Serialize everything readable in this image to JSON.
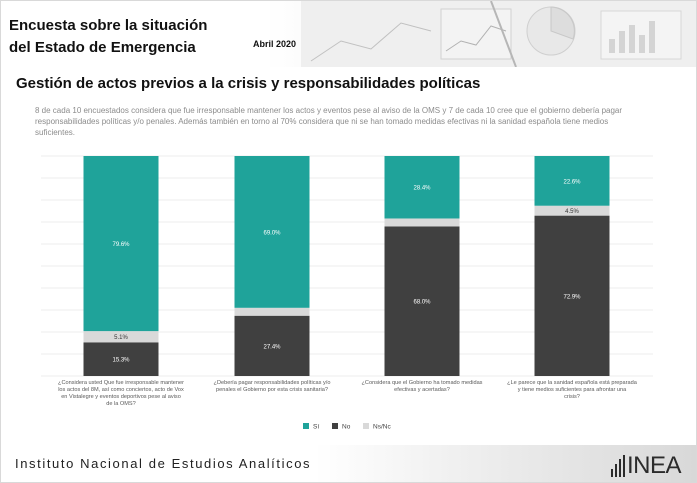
{
  "header": {
    "title_line1": "Encuesta sobre la situación",
    "title_line2": "del Estado de Emergencia",
    "date": "Abril 2020"
  },
  "slide": {
    "subtitle": "Gestión de actos previos a la crisis y responsabilidades políticas",
    "description": "8 de cada 10 encuestados considera que fue irresponsable mantener los actos y eventos pese al aviso de la OMS y 7 de cada 10 cree que el gobierno debería pagar responsabilidades políticas y/o penales. Además también en torno al 70% considera que ni se han tomado medidas efectivas ni la sanidad española tiene medios suficientes."
  },
  "footer": {
    "institute": "Instituto Nacional de Estudios Analíticos",
    "logo": "INEA"
  },
  "colors": {
    "si": "#1fa39a",
    "no": "#404040",
    "nsnc": "#d9d9d9",
    "gridline": "#ececec",
    "label_light": "#ffffff",
    "label_dark": "#333333"
  },
  "chart_data": {
    "type": "bar",
    "stacked": true,
    "percent_stacked": true,
    "categories": [
      "¿Considera usted Que fue irresponsable mantener los actos del 8M, así como conciertos, acto de Vox en Vistalegre y eventos deportivos pese al aviso de la OMS?",
      "¿Debería pagar responsabilidades políticas y/o penales el Gobierno por esta crisis sanitaria?",
      "¿Considera que el Gobierno ha tomado medidas efectivas y acertadas?",
      "¿Le parece que la sanidad española está preparada y tiene medios suficientes para afrontar una crisis?"
    ],
    "series": [
      {
        "name": "Sí",
        "values": [
          79.6,
          69.0,
          28.4,
          22.6
        ],
        "labels": [
          "79.6%",
          "69.0%",
          "28.4%",
          "22.6%"
        ]
      },
      {
        "name": "Ns/Nc",
        "values": [
          5.1,
          3.6,
          3.6,
          4.5
        ],
        "labels": [
          "5.1%",
          "",
          "",
          "4.5%"
        ]
      },
      {
        "name": "No",
        "values": [
          15.3,
          27.4,
          68.0,
          72.9
        ],
        "labels": [
          "15.3%",
          "27.4%",
          "68.0%",
          "72.9%"
        ]
      }
    ],
    "legend": [
      "Sí",
      "No",
      "Ns/Nc"
    ],
    "legend_position": "bottom",
    "ylim": [
      0,
      100
    ],
    "grid": true
  }
}
